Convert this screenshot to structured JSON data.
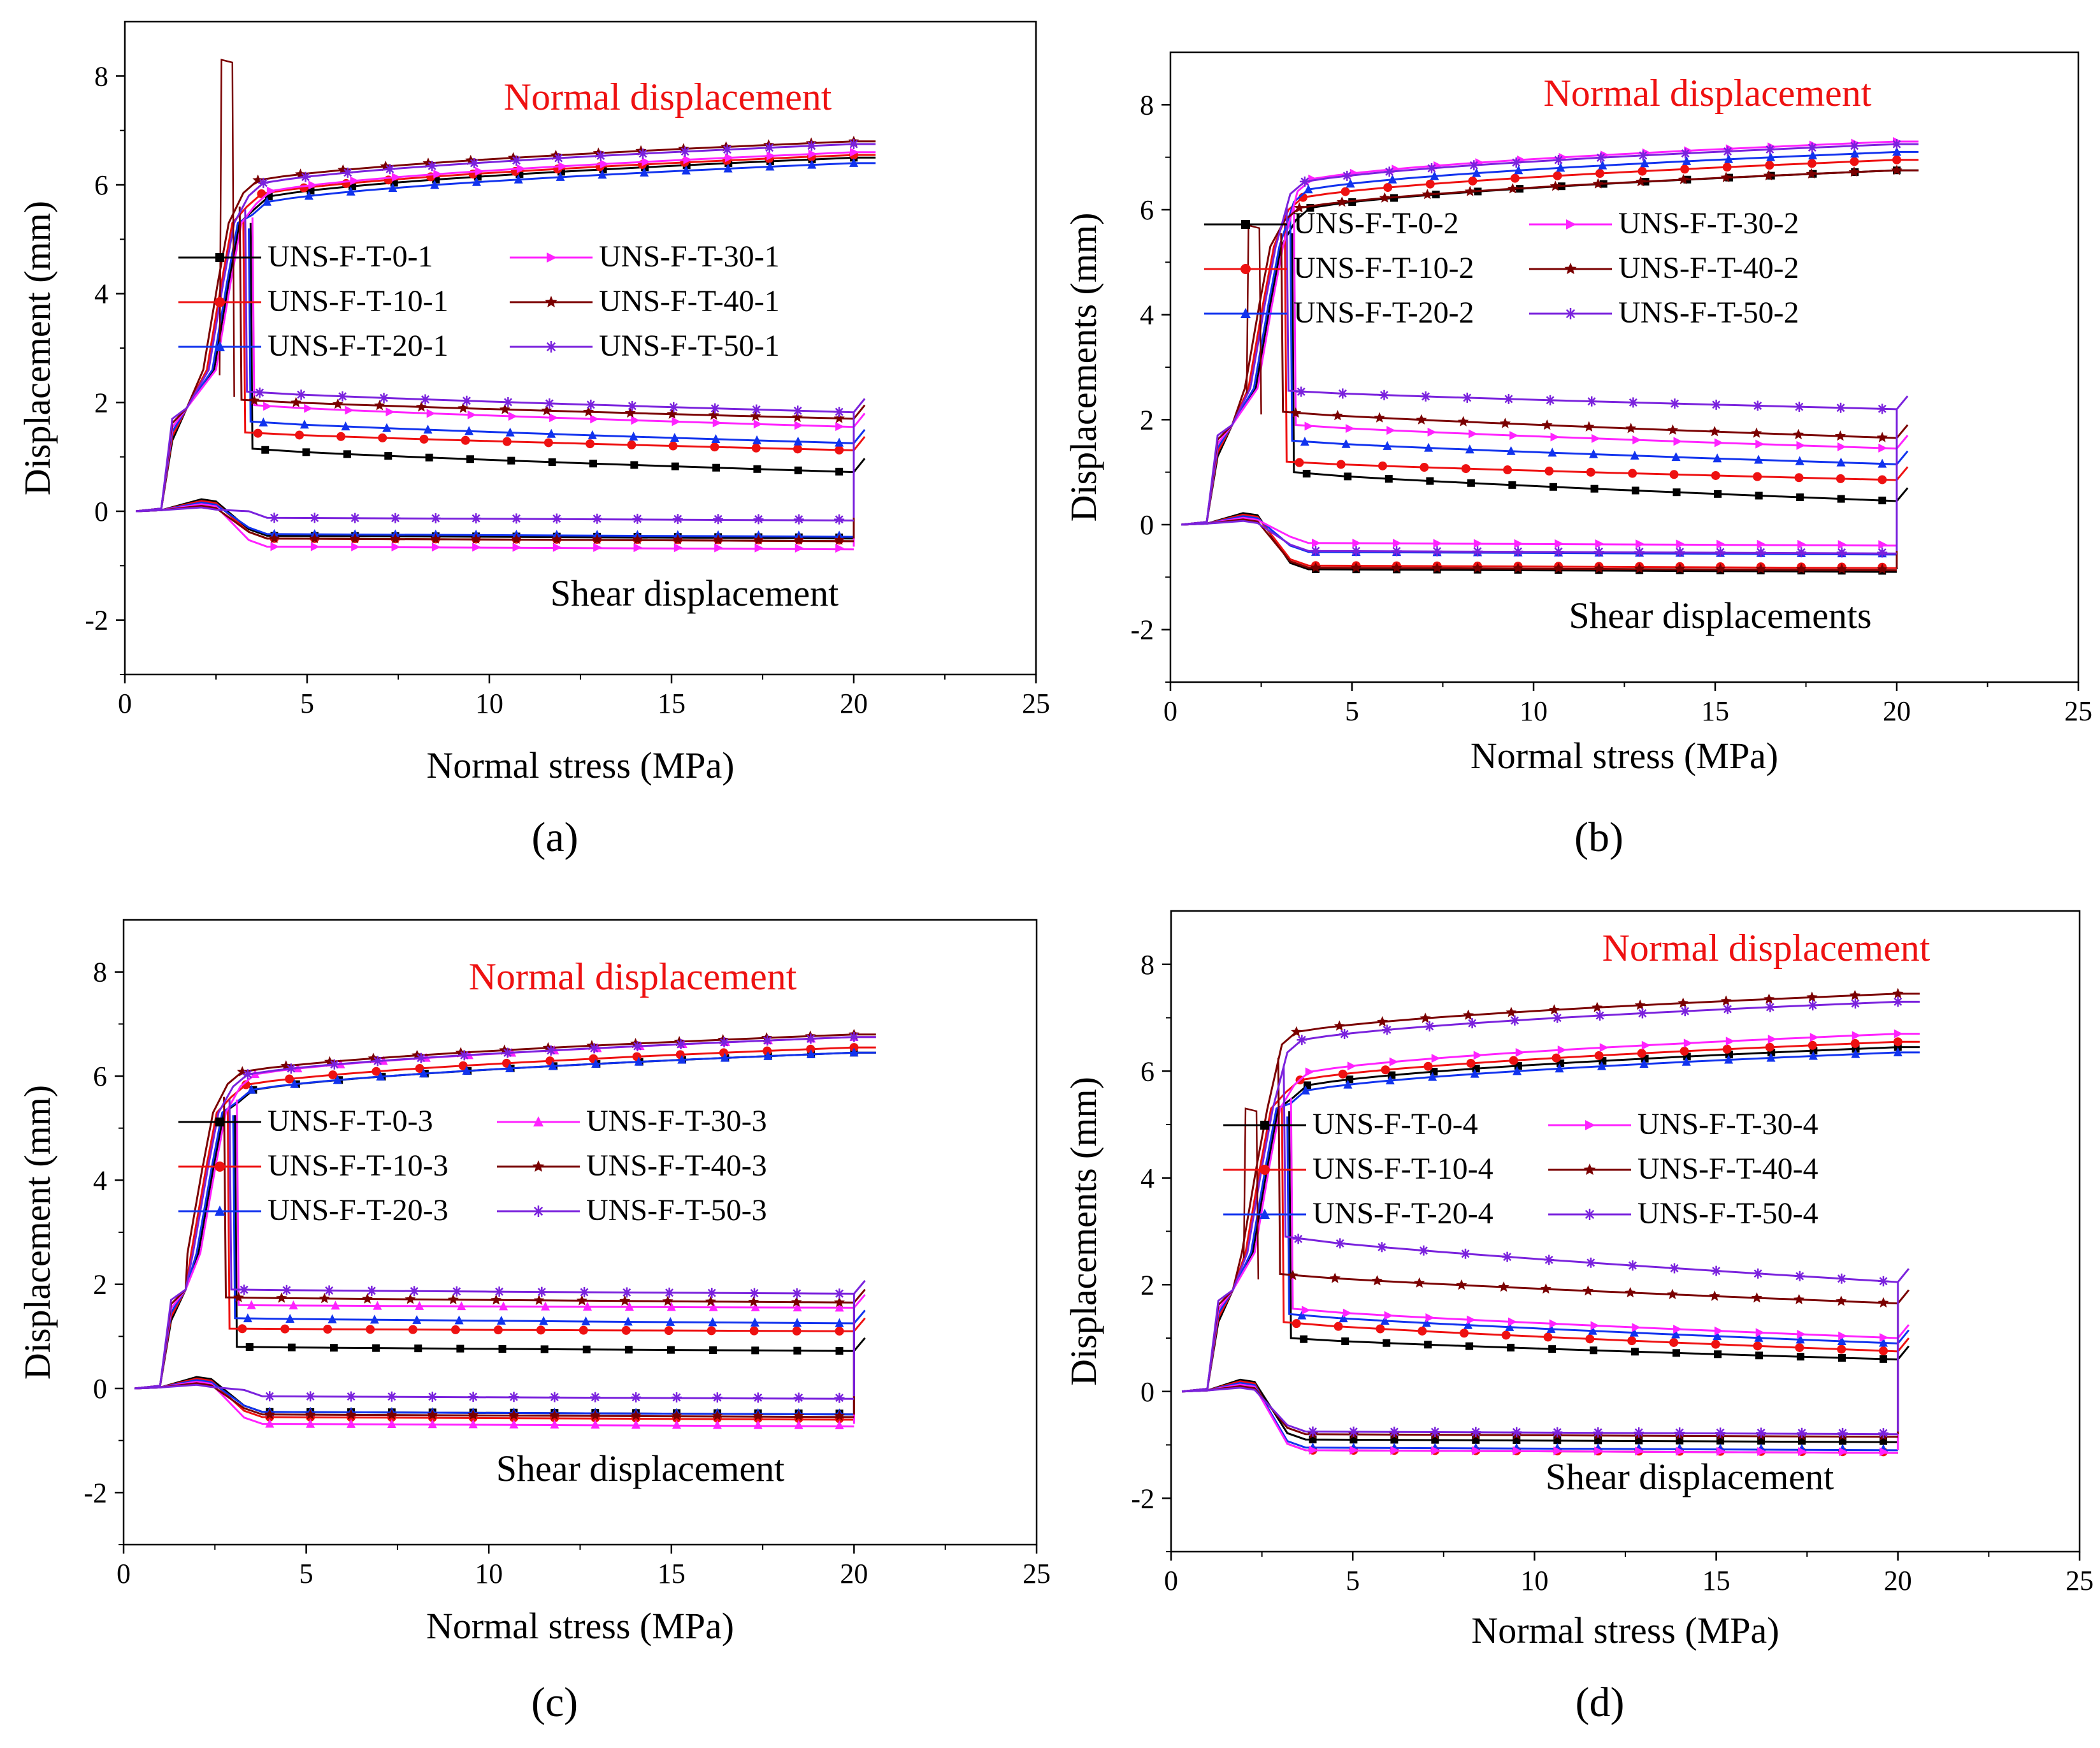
{
  "colors": {
    "UNS-F-T-0": "#000000",
    "UNS-F-T-10": "#ee1111",
    "UNS-F-T-20": "#1133ee",
    "UNS-F-T-30": "#ff22ff",
    "UNS-F-T-40": "#7a0000",
    "UNS-F-T-50": "#7a22dd",
    "annotation": "#ee1111"
  },
  "chart_data": [
    {
      "panel": "(a)",
      "type": "line",
      "xlabel": "Normal  stress (MPa)",
      "ylabel": "Displacement (mm)",
      "xlim": [
        0,
        25
      ],
      "ylim": [
        -3,
        9
      ],
      "xticks": [
        0,
        5,
        10,
        15,
        20,
        25
      ],
      "yticks": [
        -2,
        0,
        2,
        4,
        6,
        8
      ],
      "annotations": {
        "normal": "Normal displacement",
        "shear": "Shear displacement"
      },
      "series": [
        {
          "name": "UNS-F-T-0-1",
          "marker": "square",
          "normal_end": 6.5,
          "shear_plateau": -0.45,
          "unload": [
            1.15,
            0.72
          ],
          "shear_end_dip": -0.48
        },
        {
          "name": "UNS-F-T-10-1",
          "marker": "circle",
          "normal_end": 6.55,
          "shear_plateau": -0.5,
          "unload": [
            1.45,
            1.12
          ],
          "shear_end_dip": -0.5
        },
        {
          "name": "UNS-F-T-20-1",
          "marker": "triangle",
          "normal_end": 6.4,
          "shear_plateau": -0.42,
          "unload": [
            1.65,
            1.25
          ],
          "shear_end_dip": -0.42
        },
        {
          "name": "UNS-F-T-30-1",
          "marker": "right-triangle",
          "normal_end": 6.6,
          "shear_plateau": -0.65,
          "unload": [
            1.95,
            1.55
          ],
          "shear_end_dip": -0.65
        },
        {
          "name": "UNS-F-T-40-1",
          "marker": "star",
          "normal_end": 6.8,
          "shear_plateau": -0.5,
          "unload": [
            2.05,
            1.7
          ],
          "shear_end_dip": -0.5
        },
        {
          "name": "UNS-F-T-50-1",
          "marker": "asterisk",
          "normal_end": 6.75,
          "shear_plateau": -0.12,
          "unload": [
            2.2,
            1.82
          ],
          "shear_end_dip": -0.12
        }
      ]
    },
    {
      "panel": "(b)",
      "type": "line",
      "xlabel": "Normal stress (MPa)",
      "ylabel": "Displacements (mm)",
      "xlim": [
        0,
        25
      ],
      "ylim": [
        -3,
        9
      ],
      "xticks": [
        0,
        5,
        10,
        15,
        20,
        25
      ],
      "yticks": [
        -2,
        0,
        2,
        4,
        6,
        8
      ],
      "annotations": {
        "normal": "Normal  displacement",
        "shear": "Shear displacements"
      },
      "series": [
        {
          "name": "UNS-F-T-0-2",
          "marker": "square",
          "normal_end": 6.75,
          "shear_plateau": -0.85,
          "unload": [
            1.0,
            0.45
          ]
        },
        {
          "name": "UNS-F-T-10-2",
          "marker": "circle",
          "normal_end": 6.95,
          "shear_plateau": -0.78,
          "unload": [
            1.2,
            0.85
          ]
        },
        {
          "name": "UNS-F-T-20-2",
          "marker": "triangle",
          "normal_end": 7.1,
          "shear_plateau": -0.52,
          "unload": [
            1.6,
            1.15
          ]
        },
        {
          "name": "UNS-F-T-30-2",
          "marker": "right-triangle",
          "normal_end": 7.3,
          "shear_plateau": -0.35,
          "unload": [
            1.9,
            1.45
          ]
        },
        {
          "name": "UNS-F-T-40-2",
          "marker": "star",
          "normal_end": 6.75,
          "shear_plateau": -0.82,
          "unload": [
            2.15,
            1.65
          ]
        },
        {
          "name": "UNS-F-T-50-2",
          "marker": "asterisk",
          "normal_end": 7.25,
          "shear_plateau": -0.5,
          "unload": [
            2.55,
            2.2
          ]
        }
      ]
    },
    {
      "panel": "(c)",
      "type": "line",
      "xlabel": "Normal stress (MPa)",
      "ylabel": "Displacement (mm)",
      "xlim": [
        0,
        25
      ],
      "ylim": [
        -3,
        9
      ],
      "xticks": [
        0,
        5,
        10,
        15,
        20,
        25
      ],
      "yticks": [
        -2,
        0,
        2,
        4,
        6,
        8
      ],
      "annotations": {
        "normal": "Normal displacement",
        "shear": "Shear displacement"
      },
      "series": [
        {
          "name": "UNS-F-T-0-3",
          "marker": "square",
          "normal_end": 6.45,
          "shear_plateau": -0.45,
          "unload": [
            0.8,
            0.72
          ]
        },
        {
          "name": "UNS-F-T-10-3",
          "marker": "circle",
          "normal_end": 6.55,
          "shear_plateau": -0.55,
          "unload": [
            1.15,
            1.1
          ]
        },
        {
          "name": "UNS-F-T-20-3",
          "marker": "triangle",
          "normal_end": 6.45,
          "shear_plateau": -0.45,
          "unload": [
            1.35,
            1.25
          ]
        },
        {
          "name": "UNS-F-T-30-3",
          "marker": "triangle",
          "normal_end": 6.75,
          "shear_plateau": -0.68,
          "unload": [
            1.6,
            1.55
          ]
        },
        {
          "name": "UNS-F-T-40-3",
          "marker": "star",
          "normal_end": 6.8,
          "shear_plateau": -0.5,
          "unload": [
            1.75,
            1.65
          ]
        },
        {
          "name": "UNS-F-T-50-3",
          "marker": "asterisk",
          "normal_end": 6.75,
          "shear_plateau": -0.15,
          "unload": [
            1.9,
            1.82
          ]
        }
      ]
    },
    {
      "panel": "(d)",
      "type": "line",
      "xlabel": "Normal stress (MPa)",
      "ylabel": "Displacements (mm)",
      "xlim": [
        0,
        25
      ],
      "ylim": [
        -3,
        9
      ],
      "xticks": [
        0,
        5,
        10,
        15,
        20,
        25
      ],
      "yticks": [
        -2,
        0,
        2,
        4,
        6,
        8
      ],
      "annotations": {
        "normal": "Normal displacement",
        "shear": "Shear displacement"
      },
      "series": [
        {
          "name": "UNS-F-T-0-4",
          "marker": "square",
          "normal_end": 6.45,
          "shear_plateau": -0.9,
          "unload": [
            1.0,
            0.6
          ]
        },
        {
          "name": "UNS-F-T-10-4",
          "marker": "circle",
          "normal_end": 6.55,
          "shear_plateau": -1.1,
          "unload": [
            1.3,
            0.75
          ]
        },
        {
          "name": "UNS-F-T-20-4",
          "marker": "triangle",
          "normal_end": 6.35,
          "shear_plateau": -1.05,
          "unload": [
            1.45,
            0.9
          ]
        },
        {
          "name": "UNS-F-T-30-4",
          "marker": "right-triangle",
          "normal_end": 6.7,
          "shear_plateau": -1.1,
          "unload": [
            1.55,
            1.0
          ]
        },
        {
          "name": "UNS-F-T-40-4",
          "marker": "star",
          "normal_end": 7.45,
          "shear_plateau": -0.8,
          "unload": [
            2.2,
            1.65
          ]
        },
        {
          "name": "UNS-F-T-50-4",
          "marker": "asterisk",
          "normal_end": 7.3,
          "shear_plateau": -0.75,
          "unload": [
            2.9,
            2.05
          ]
        }
      ]
    }
  ]
}
